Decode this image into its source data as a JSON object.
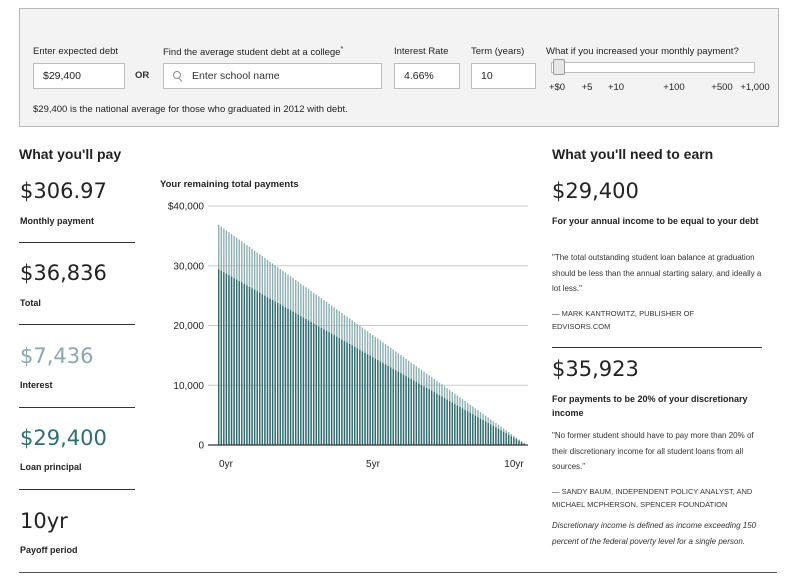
{
  "inputs": {
    "debt_label": "Enter expected debt",
    "debt_value": "$29,400",
    "or_label": "OR",
    "school_label": "Find the average student debt at a college",
    "school_asterisk": "*",
    "school_placeholder": "Enter school name",
    "rate_label": "Interest Rate",
    "rate_value": "4.66%",
    "term_label": "Term (years)",
    "term_value": "10",
    "slider_label": "What if you increased your monthly payment?",
    "slider_ticks": [
      "+$0",
      "+5",
      "+10",
      "+100",
      "+500",
      "+1,000"
    ],
    "slider_value": "+$0",
    "note": "$29,400 is the national average for those who graduated in 2012 with debt."
  },
  "pay": {
    "heading": "What you'll pay",
    "monthly_value": "$306.97",
    "monthly_label": "Monthly payment",
    "total_value": "$36,836",
    "total_label": "Total",
    "interest_value": "$7,436",
    "interest_label": "Interest",
    "principal_value": "$29,400",
    "principal_label": "Loan principal",
    "payoff_value": "10yr",
    "payoff_label": "Payoff period"
  },
  "earn": {
    "heading": "What you'll need to earn",
    "income_value": "$29,400",
    "income_label": "For your annual income to be equal to your debt",
    "income_quote": "\"The total outstanding student loan balance at graduation should be less than the annual starting salary, and ideally a lot less.\"",
    "income_attr": "— Mark Kantrowitz, publisher of Edvisors.com",
    "disc_value": "$35,923",
    "disc_label": "For payments to be 20% of your discretionary income",
    "disc_quote": "\"No former student should have to pay more than 20% of their discretionary income for all student loans from all sources.\"",
    "disc_attr": "— Sandy Baum, independent policy analyst, and Michael McPherson, Spencer Foundation",
    "disc_note": "Discretionary income is defined as income exceeding 150 percent of the federal poverty level for a single person."
  },
  "colors": {
    "principal": "#2e6b6e",
    "interest": "#8fb0b3",
    "interest_text": "#8aa9ac",
    "principal_text": "#2d6e72"
  },
  "chart_data": {
    "type": "bar",
    "title": "Your remaining total payments",
    "x": {
      "label": "",
      "ticks": [
        "0yr",
        "5yr",
        "10yr"
      ],
      "range": [
        0,
        10
      ],
      "months": 120
    },
    "y": {
      "ticks": [
        "$40,000",
        "30,000",
        "20,000",
        "10,000",
        "0"
      ],
      "tick_values": [
        40000,
        30000,
        20000,
        10000,
        0
      ],
      "range": [
        0,
        40000
      ]
    },
    "grid": true,
    "series": [
      {
        "start_value": 29400,
        "end_value": 0
      },
      {
        "start_value": 36836,
        "end_value": 0
      }
    ]
  }
}
